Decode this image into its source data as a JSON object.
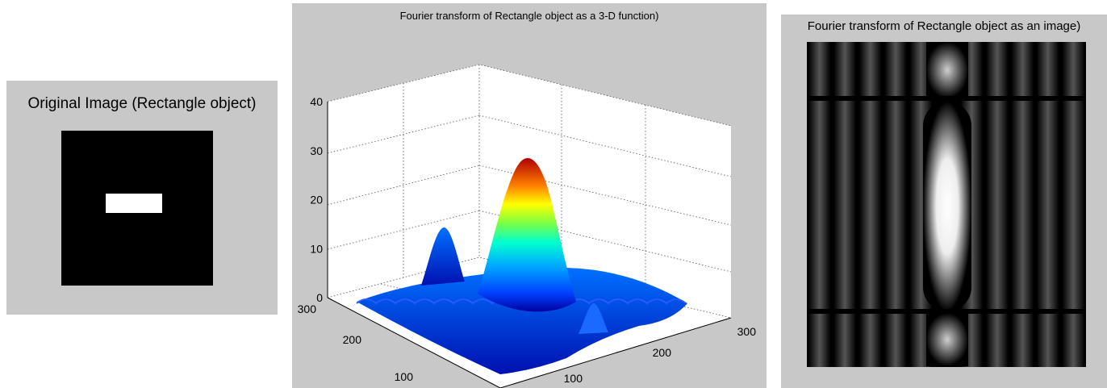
{
  "chart_data": [
    {
      "type": "image",
      "title": "Original Image (Rectangle object)",
      "colors": {
        "background": "#000000",
        "object": "#ffffff"
      }
    },
    {
      "type": "surface",
      "title": "Fourier transform of Rectangle object as a 3-D function)",
      "z_ticks": [
        "0",
        "10",
        "20",
        "30",
        "40"
      ],
      "y_ticks": [
        "300",
        "200",
        "100"
      ],
      "x_ticks": [
        "100",
        "200",
        "300"
      ],
      "zlim": [
        0,
        40
      ],
      "xlim": [
        0,
        300
      ],
      "ylim": [
        0,
        300
      ],
      "grid": true,
      "colormap": "jet",
      "peak_value": 28,
      "secondary_peak_value": 14
    },
    {
      "type": "image",
      "title": "Fourier transform of Rectangle object as an image)",
      "colormap": "gray"
    }
  ]
}
